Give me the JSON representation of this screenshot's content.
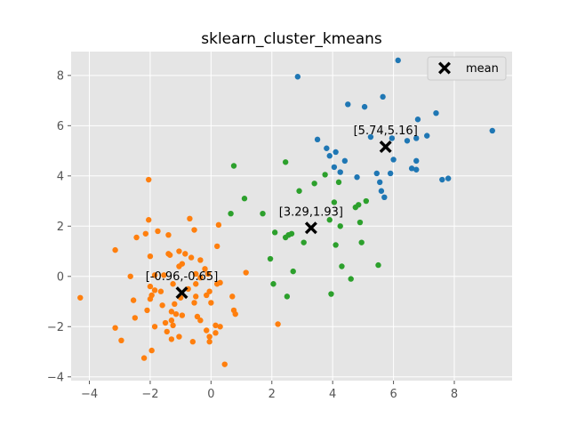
{
  "chart_data": {
    "type": "scatter",
    "title": "sklearn_cluster_kmeans",
    "xlabel": "",
    "ylabel": "",
    "xlim": [
      -4.6,
      9.9
    ],
    "ylim": [
      -4.15,
      8.95
    ],
    "xticks": [
      -4,
      -2,
      0,
      2,
      4,
      6,
      8
    ],
    "yticks": [
      -4,
      -2,
      0,
      2,
      4,
      6,
      8
    ],
    "grid": true,
    "legend_position": "top-right",
    "colors": {
      "background": "#e5e5e5",
      "grid": "#ffffff",
      "cluster0": "#1f77b4",
      "cluster1": "#ff7f0e",
      "cluster2": "#2ca02c",
      "center": "#000000"
    },
    "series": [
      {
        "cluster": 0,
        "color": "#1f77b4",
        "points": [
          [
            6.15,
            8.6
          ],
          [
            2.85,
            7.95
          ],
          [
            5.65,
            7.15
          ],
          [
            4.5,
            6.85
          ],
          [
            5.05,
            6.75
          ],
          [
            7.4,
            6.5
          ],
          [
            6.8,
            6.25
          ],
          [
            3.5,
            5.45
          ],
          [
            5.25,
            5.55
          ],
          [
            5.95,
            5.5
          ],
          [
            6.45,
            5.4
          ],
          [
            6.75,
            5.5
          ],
          [
            7.1,
            5.6
          ],
          [
            9.25,
            5.8
          ],
          [
            3.8,
            5.1
          ],
          [
            4.1,
            4.95
          ],
          [
            3.9,
            4.8
          ],
          [
            4.4,
            4.6
          ],
          [
            6.0,
            4.65
          ],
          [
            6.75,
            4.6
          ],
          [
            4.05,
            4.35
          ],
          [
            4.25,
            4.15
          ],
          [
            5.45,
            4.1
          ],
          [
            5.9,
            4.1
          ],
          [
            6.6,
            4.3
          ],
          [
            6.75,
            4.25
          ],
          [
            4.8,
            3.95
          ],
          [
            7.6,
            3.85
          ],
          [
            7.8,
            3.9
          ],
          [
            5.55,
            3.75
          ],
          [
            5.6,
            3.4
          ],
          [
            5.7,
            3.15
          ]
        ]
      },
      {
        "cluster": 1,
        "color": "#ff7f0e",
        "points": [
          [
            -2.05,
            3.85
          ],
          [
            -0.7,
            2.3
          ],
          [
            -2.05,
            2.25
          ],
          [
            -0.55,
            1.85
          ],
          [
            -1.75,
            1.8
          ],
          [
            -2.15,
            1.7
          ],
          [
            -1.4,
            1.65
          ],
          [
            -2.45,
            1.55
          ],
          [
            0.25,
            2.05
          ],
          [
            0.2,
            1.2
          ],
          [
            -3.15,
            1.05
          ],
          [
            -1.05,
            1.0
          ],
          [
            -1.4,
            0.9
          ],
          [
            -2.0,
            0.8
          ],
          [
            -1.35,
            0.85
          ],
          [
            -0.85,
            0.9
          ],
          [
            -0.65,
            0.75
          ],
          [
            -0.35,
            0.65
          ],
          [
            -0.95,
            0.5
          ],
          [
            -1.05,
            0.4
          ],
          [
            -0.2,
            0.3
          ],
          [
            -0.1,
            0.1
          ],
          [
            -0.5,
            0.1
          ],
          [
            -1.85,
            0.05
          ],
          [
            -1.55,
            0.05
          ],
          [
            -0.35,
            -0.05
          ],
          [
            -2.65,
            0.0
          ],
          [
            1.15,
            0.15
          ],
          [
            0.3,
            -0.25
          ],
          [
            -2.0,
            -0.4
          ],
          [
            -1.25,
            -0.3
          ],
          [
            -0.5,
            -0.3
          ],
          [
            -0.75,
            -0.5
          ],
          [
            -1.85,
            -0.55
          ],
          [
            -1.65,
            -0.6
          ],
          [
            -1.95,
            -0.75
          ],
          [
            -2.0,
            -0.9
          ],
          [
            -0.05,
            -0.6
          ],
          [
            -0.5,
            -0.8
          ],
          [
            0.7,
            -0.8
          ],
          [
            -0.15,
            -0.75
          ],
          [
            -1.0,
            -0.85
          ],
          [
            -2.55,
            -0.95
          ],
          [
            -4.3,
            -0.85
          ],
          [
            -1.2,
            -1.1
          ],
          [
            -1.6,
            -1.15
          ],
          [
            -0.55,
            -1.05
          ],
          [
            0.0,
            -1.05
          ],
          [
            -2.1,
            -1.35
          ],
          [
            -1.3,
            -1.4
          ],
          [
            0.75,
            -1.35
          ],
          [
            0.8,
            -1.5
          ],
          [
            -1.15,
            -1.5
          ],
          [
            -0.95,
            -1.55
          ],
          [
            -0.45,
            -1.6
          ],
          [
            -2.5,
            -1.65
          ],
          [
            -1.3,
            -1.75
          ],
          [
            -0.35,
            -1.75
          ],
          [
            -1.5,
            -1.85
          ],
          [
            -1.25,
            -1.95
          ],
          [
            0.15,
            -1.95
          ],
          [
            0.3,
            -2.0
          ],
          [
            -3.15,
            -2.05
          ],
          [
            -1.85,
            -2.0
          ],
          [
            -1.45,
            -2.2
          ],
          [
            -0.15,
            -2.15
          ],
          [
            -0.05,
            -2.4
          ],
          [
            -1.05,
            -2.4
          ],
          [
            -1.3,
            -2.5
          ],
          [
            -0.6,
            -2.6
          ],
          [
            -2.95,
            -2.55
          ],
          [
            -0.05,
            -2.6
          ],
          [
            0.15,
            -2.25
          ],
          [
            -1.95,
            -2.95
          ],
          [
            -2.2,
            -3.25
          ],
          [
            0.45,
            -3.5
          ],
          [
            2.2,
            -1.9
          ],
          [
            0.2,
            -0.3
          ]
        ]
      },
      {
        "cluster": 2,
        "color": "#2ca02c",
        "points": [
          [
            0.75,
            4.4
          ],
          [
            2.45,
            4.55
          ],
          [
            3.75,
            4.05
          ],
          [
            3.4,
            3.7
          ],
          [
            4.2,
            3.75
          ],
          [
            1.1,
            3.1
          ],
          [
            4.05,
            2.95
          ],
          [
            2.9,
            3.4
          ],
          [
            5.1,
            3.0
          ],
          [
            4.85,
            2.85
          ],
          [
            4.75,
            2.75
          ],
          [
            0.65,
            2.5
          ],
          [
            1.7,
            2.5
          ],
          [
            3.9,
            2.25
          ],
          [
            4.9,
            2.15
          ],
          [
            4.25,
            2.0
          ],
          [
            2.1,
            1.75
          ],
          [
            2.65,
            1.7
          ],
          [
            2.55,
            1.65
          ],
          [
            2.45,
            1.55
          ],
          [
            3.05,
            1.35
          ],
          [
            4.95,
            1.35
          ],
          [
            4.1,
            1.25
          ],
          [
            1.95,
            0.7
          ],
          [
            4.3,
            0.4
          ],
          [
            5.5,
            0.45
          ],
          [
            2.7,
            0.2
          ],
          [
            4.6,
            -0.1
          ],
          [
            2.05,
            -0.3
          ],
          [
            2.5,
            -0.8
          ],
          [
            3.95,
            -0.7
          ]
        ]
      }
    ],
    "centers": [
      {
        "x": 5.74,
        "y": 5.16,
        "label": "[5.74,5.16]"
      },
      {
        "x": 3.29,
        "y": 1.93,
        "label": "[3.29,1.93]"
      },
      {
        "x": -0.96,
        "y": -0.65,
        "label": "[-0.96,-0.65]"
      }
    ],
    "legend": {
      "label": "mean"
    }
  }
}
